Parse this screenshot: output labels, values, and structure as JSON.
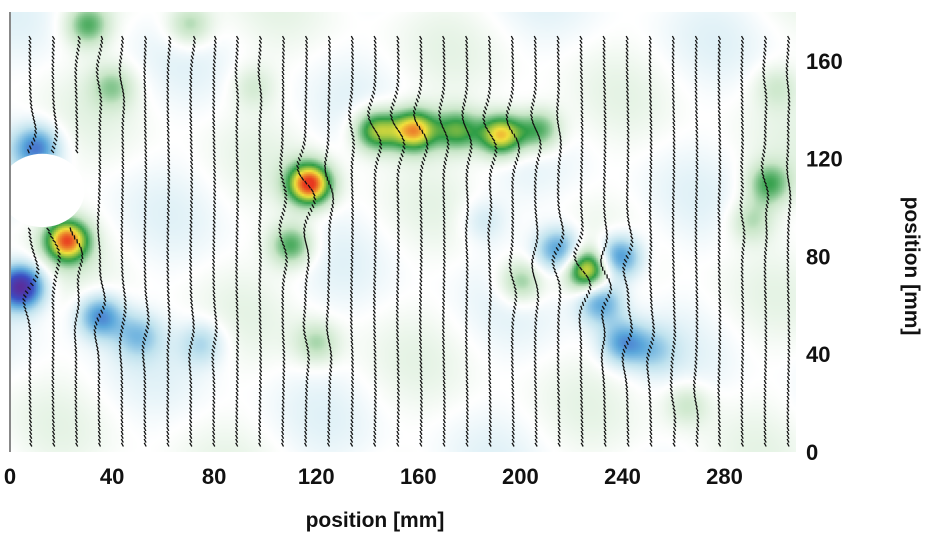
{
  "chart_data": {
    "type": "heatmap",
    "xlabel": "position [mm]",
    "ylabel": "position [mm]",
    "xlim": [
      0,
      308
    ],
    "ylim": [
      0,
      180
    ],
    "x_ticks": [
      0,
      40,
      80,
      120,
      160,
      200,
      240,
      280
    ],
    "y_ticks": [
      0,
      40,
      80,
      120,
      160
    ],
    "x_tick_labels": [
      "0",
      "40",
      "80",
      "120",
      "160",
      "200",
      "240",
      "280"
    ],
    "y_tick_labels": [
      "0",
      "40",
      "80",
      "120",
      "160"
    ],
    "y_axis_side": "right",
    "grid": false,
    "legend": "none",
    "colormap": [
      "#5a2d9c",
      "#3a4fc4",
      "#5aa7db",
      "#bfe2ee",
      "#ffffff",
      "#c9e6c8",
      "#2f9e47",
      "#f2e23c",
      "#e8371f"
    ],
    "background_color": "#ffffff",
    "obstacle": {
      "x_range": [
        0,
        30
      ],
      "y_range": [
        92,
        122
      ]
    },
    "vector_field": {
      "x_positions": [
        8,
        17,
        26,
        35,
        44,
        53,
        62,
        71,
        80,
        89,
        98,
        107,
        116,
        125,
        134,
        143,
        152,
        161,
        170,
        179,
        188,
        197,
        206,
        215,
        224,
        233,
        242,
        251,
        260,
        269,
        278,
        287,
        296,
        305
      ],
      "y_range": [
        3,
        170
      ],
      "arrow_color": "#111111"
    },
    "field_features": [
      {
        "x": 4,
        "y": 68,
        "value": -1.0
      },
      {
        "x": 10,
        "y": 125,
        "value": -0.6
      },
      {
        "x": 22,
        "y": 87,
        "value": 0.9
      },
      {
        "x": 35,
        "y": 56,
        "value": -0.6
      },
      {
        "x": 50,
        "y": 48,
        "value": -0.35
      },
      {
        "x": 75,
        "y": 45,
        "value": -0.3
      },
      {
        "x": 110,
        "y": 85,
        "value": 0.5
      },
      {
        "x": 117,
        "y": 110,
        "value": 1.0
      },
      {
        "x": 143,
        "y": 132,
        "value": 0.7
      },
      {
        "x": 158,
        "y": 132,
        "value": 0.85
      },
      {
        "x": 192,
        "y": 130,
        "value": 0.85
      },
      {
        "x": 175,
        "y": 132,
        "value": 0.55
      },
      {
        "x": 207,
        "y": 132,
        "value": 0.5
      },
      {
        "x": 215,
        "y": 83,
        "value": -0.6
      },
      {
        "x": 226,
        "y": 75,
        "value": 0.8
      },
      {
        "x": 231,
        "y": 62,
        "value": -0.55
      },
      {
        "x": 238,
        "y": 80,
        "value": -0.7
      },
      {
        "x": 240,
        "y": 45,
        "value": -0.5
      },
      {
        "x": 252,
        "y": 42,
        "value": -0.25
      },
      {
        "x": 200,
        "y": 70,
        "value": 0.4
      },
      {
        "x": 40,
        "y": 150,
        "value": 0.3
      },
      {
        "x": 30,
        "y": 175,
        "value": 0.45
      },
      {
        "x": 70,
        "y": 175,
        "value": 0.35
      },
      {
        "x": 95,
        "y": 150,
        "value": 0.2
      },
      {
        "x": 185,
        "y": 95,
        "value": -0.2
      },
      {
        "x": 297,
        "y": 110,
        "value": 0.45
      },
      {
        "x": 290,
        "y": 95,
        "value": 0.3
      },
      {
        "x": 300,
        "y": 150,
        "value": 0.2
      },
      {
        "x": 265,
        "y": 20,
        "value": 0.25
      },
      {
        "x": 120,
        "y": 45,
        "value": 0.3
      }
    ]
  }
}
